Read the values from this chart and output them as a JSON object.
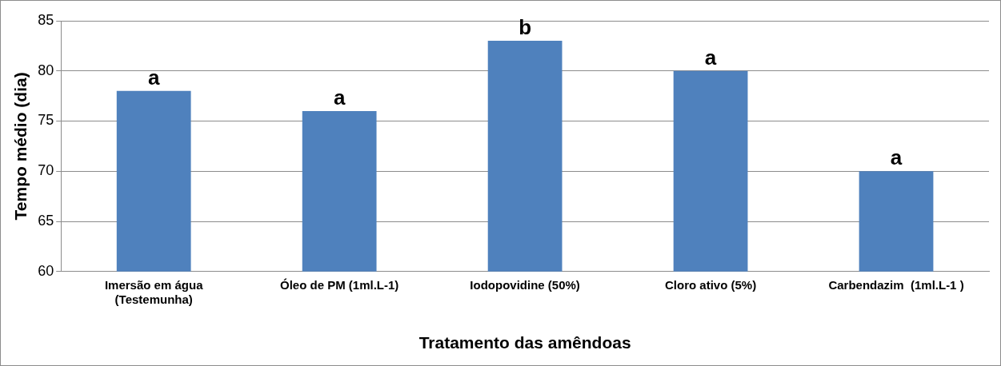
{
  "chart_data": {
    "type": "bar",
    "xlabel": "Tratamento das amêndoas",
    "ylabel": "Tempo médio (dia)",
    "categories": [
      "Imersão em água (Testemunha)",
      "Óleo de PM (1ml.L-1)",
      "Iodopovidine (50%)",
      "Cloro ativo (5%)",
      "Carbendazim  (1ml.L-1 )"
    ],
    "values": [
      78,
      76,
      83,
      80,
      70
    ],
    "color": "#4f81bd",
    "ylim": [
      60,
      85
    ],
    "yticks": [
      60,
      65,
      70,
      75,
      80,
      85
    ],
    "grid": "y",
    "legend": false,
    "annotations": [
      {
        "text": "a",
        "x": "Imersão em água (Testemunha)",
        "y": 78
      },
      {
        "text": "a",
        "x": "Óleo de PM (1ml.L-1)",
        "y": 76
      },
      {
        "text": "b",
        "x": "Iodopovidine (50%)",
        "y": 83
      },
      {
        "text": "a",
        "x": "Cloro ativo (5%)",
        "y": 80
      },
      {
        "text": "a",
        "x": "Carbendazim  (1ml.L-1 )",
        "y": 70
      }
    ]
  }
}
